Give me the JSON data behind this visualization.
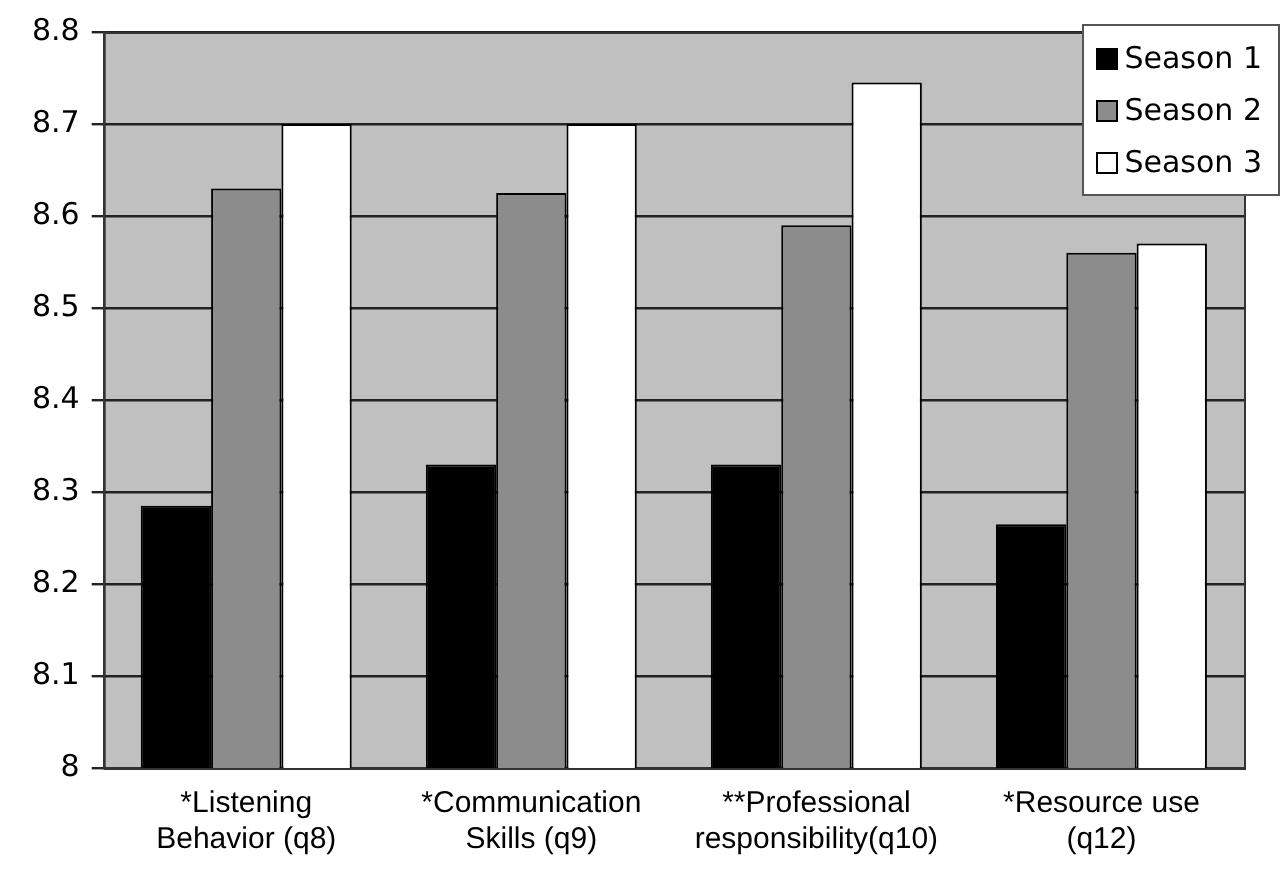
{
  "chart_data": {
    "type": "bar",
    "categories": [
      "*Listening Behavior (q8)",
      "*Communication Skills (q9)",
      "**Professional responsibility(q10)",
      "*Resource use (q12)"
    ],
    "series": [
      {
        "name": "Season 1",
        "color": "#000000",
        "values": [
          8.285,
          8.33,
          8.33,
          8.265
        ]
      },
      {
        "name": "Season 2",
        "color": "#8c8c8c",
        "values": [
          8.63,
          8.625,
          8.59,
          8.56
        ]
      },
      {
        "name": "Season 3",
        "color": "#ffffff",
        "values": [
          8.7,
          8.7,
          8.745,
          8.57
        ]
      }
    ],
    "ylim": [
      8,
      8.8
    ],
    "yticks": [
      8,
      8.1,
      8.2,
      8.3,
      8.4,
      8.5,
      8.6,
      8.7,
      8.8
    ],
    "grid": "y",
    "legend": "top right"
  }
}
